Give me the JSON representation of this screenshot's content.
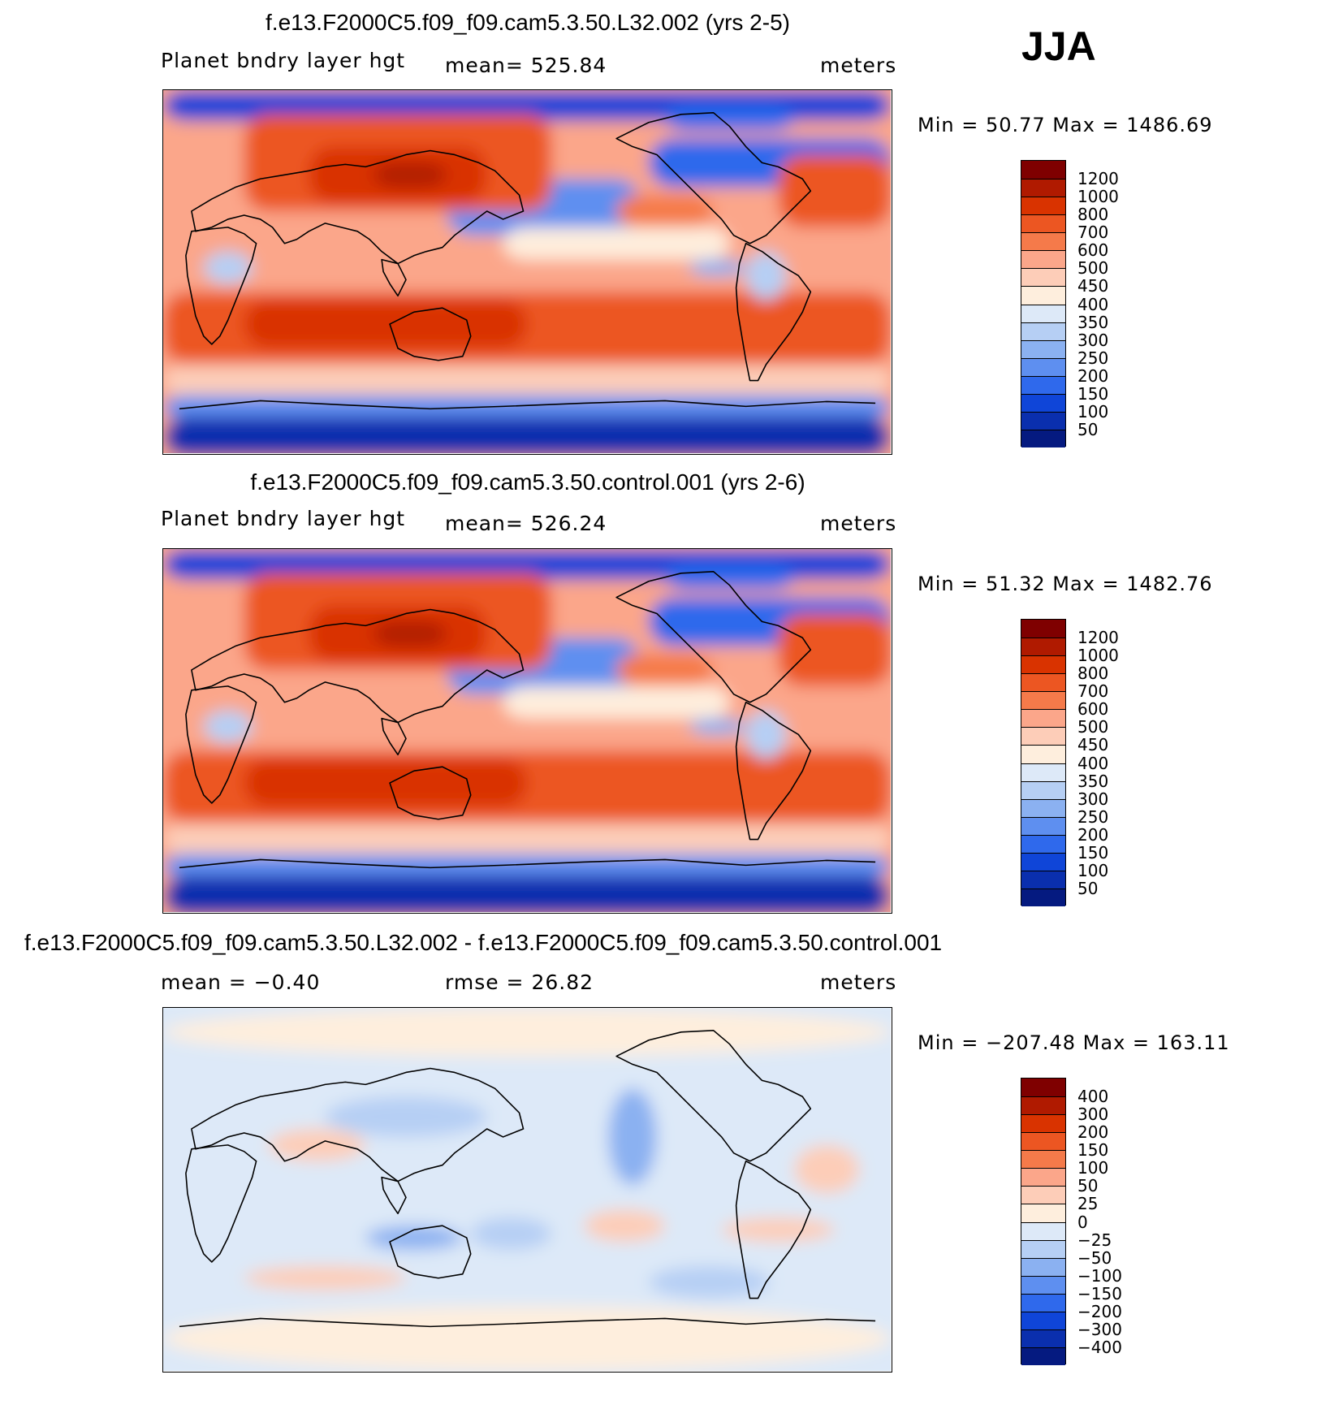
{
  "season": "JJA",
  "panels": [
    {
      "title": "f.e13.F2000C5.f09_f09.cam5.3.50.L32.002 (yrs 2-5)",
      "left_label": "Planet bndry layer hgt",
      "center_label": "mean= 525.84",
      "right_label": "meters",
      "minmax": "Min =   50.77 Max = 1486.69",
      "colorbar": {
        "labels": [
          "1200",
          "1000",
          "800",
          "700",
          "600",
          "500",
          "450",
          "400",
          "350",
          "300",
          "250",
          "200",
          "150",
          "100",
          "50"
        ],
        "colors": [
          "#7f0000",
          "#b01a00",
          "#d93300",
          "#ec5622",
          "#f57a4a",
          "#fba68a",
          "#fdcdb8",
          "#feeedd",
          "#dde9f8",
          "#b6cff4",
          "#8bb1f1",
          "#5e8ff0",
          "#2f69ec",
          "#0f45d8",
          "#0a2fae",
          "#051a80"
        ]
      },
      "map_style": "absolute"
    },
    {
      "title": "f.e13.F2000C5.f09_f09.cam5.3.50.control.001 (yrs 2-6)",
      "left_label": "Planet bndry layer hgt",
      "center_label": "mean= 526.24",
      "right_label": "meters",
      "minmax": "Min =   51.32 Max = 1482.76",
      "colorbar": {
        "labels": [
          "1200",
          "1000",
          "800",
          "700",
          "600",
          "500",
          "450",
          "400",
          "350",
          "300",
          "250",
          "200",
          "150",
          "100",
          "50"
        ],
        "colors": [
          "#7f0000",
          "#b01a00",
          "#d93300",
          "#ec5622",
          "#f57a4a",
          "#fba68a",
          "#fdcdb8",
          "#feeedd",
          "#dde9f8",
          "#b6cff4",
          "#8bb1f1",
          "#5e8ff0",
          "#2f69ec",
          "#0f45d8",
          "#0a2fae",
          "#051a80"
        ]
      },
      "map_style": "absolute"
    },
    {
      "title": "f.e13.F2000C5.f09_f09.cam5.3.50.L32.002 - f.e13.F2000C5.f09_f09.cam5.3.50.control.001",
      "left_label": "mean =   −0.40",
      "center_label": "rmse =   26.82",
      "right_label": "meters",
      "minmax": "Min = −207.48 Max = 163.11",
      "colorbar": {
        "labels": [
          "400",
          "300",
          "200",
          "150",
          "100",
          "50",
          "25",
          "0",
          "−25",
          "−50",
          "−100",
          "−150",
          "−200",
          "−300",
          "−400"
        ],
        "colors": [
          "#7f0000",
          "#b01a00",
          "#d93300",
          "#ec5622",
          "#f57a4a",
          "#fba68a",
          "#fdcdb8",
          "#feeedd",
          "#dde9f8",
          "#b6cff4",
          "#8bb1f1",
          "#5e8ff0",
          "#2f69ec",
          "#0f45d8",
          "#0a2fae",
          "#051a80"
        ]
      },
      "map_style": "difference"
    }
  ]
}
